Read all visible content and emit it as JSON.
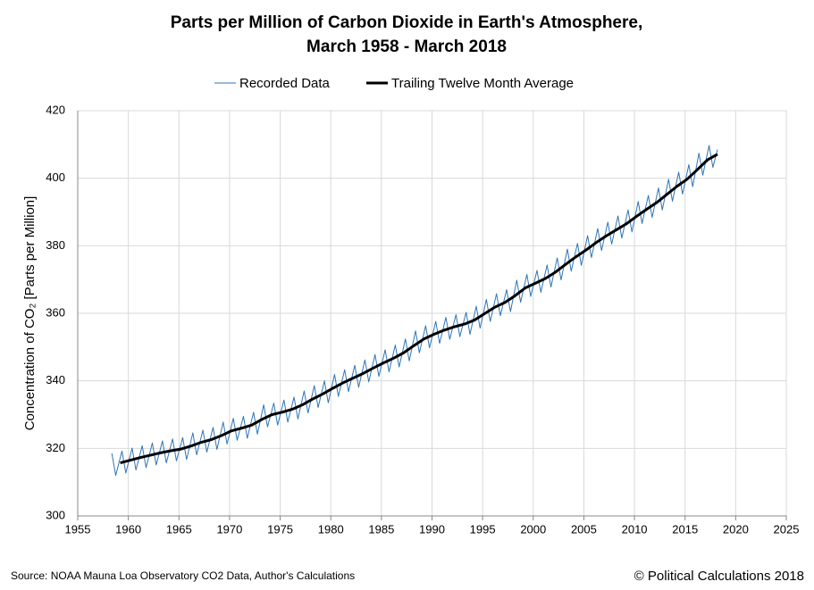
{
  "chart_data": {
    "type": "line",
    "title": [
      "Parts per Million of Carbon Dioxide in Earth's Atmosphere,",
      "March 1958 - March 2018"
    ],
    "y_label": "Concentration of CO₂ [Parts per Million]",
    "source": "Source: NOAA Mauna Loa Observatory CO2 Data, Author's Calculations",
    "credit": "© Political Calculations 2018",
    "xlim": [
      1955,
      2025
    ],
    "xticks": [
      1955,
      1960,
      1965,
      1970,
      1975,
      1980,
      1985,
      1990,
      1995,
      2000,
      2005,
      2010,
      2015,
      2020,
      2025
    ],
    "ylim": [
      300,
      420
    ],
    "yticks": [
      300,
      320,
      340,
      360,
      380,
      400,
      420
    ],
    "grid": true,
    "legend": "top",
    "series": [
      {
        "name": "Recorded Data",
        "color": "#2e75b6",
        "x": [
          1958.37,
          1958.75,
          1959.37,
          1959.75,
          1960.37,
          1960.75,
          1961.37,
          1961.75,
          1962.37,
          1962.75,
          1963.37,
          1963.75,
          1964.37,
          1964.75,
          1965.37,
          1965.75,
          1966.37,
          1966.75,
          1967.37,
          1967.75,
          1968.37,
          1968.75,
          1969.37,
          1969.75,
          1970.37,
          1970.75,
          1971.37,
          1971.75,
          1972.37,
          1972.75,
          1973.37,
          1973.75,
          1974.37,
          1974.75,
          1975.37,
          1975.75,
          1976.37,
          1976.75,
          1977.37,
          1977.75,
          1978.37,
          1978.75,
          1979.37,
          1979.75,
          1980.37,
          1980.75,
          1981.37,
          1981.75,
          1982.37,
          1982.75,
          1983.37,
          1983.75,
          1984.37,
          1984.75,
          1985.37,
          1985.75,
          1986.37,
          1986.75,
          1987.37,
          1987.75,
          1988.37,
          1988.75,
          1989.37,
          1989.75,
          1990.37,
          1990.75,
          1991.37,
          1991.75,
          1992.37,
          1992.75,
          1993.37,
          1993.75,
          1994.37,
          1994.75,
          1995.37,
          1995.75,
          1996.37,
          1996.75,
          1997.37,
          1997.75,
          1998.37,
          1998.75,
          1999.37,
          1999.75,
          2000.37,
          2000.75,
          2001.37,
          2001.75,
          2002.37,
          2002.75,
          2003.37,
          2003.75,
          2004.37,
          2004.75,
          2005.37,
          2005.75,
          2006.37,
          2006.75,
          2007.37,
          2007.75,
          2008.37,
          2008.75,
          2009.37,
          2009.75,
          2010.37,
          2010.75,
          2011.37,
          2011.75,
          2012.37,
          2012.75,
          2013.37,
          2013.75,
          2014.37,
          2014.75,
          2015.37,
          2015.75,
          2016.37,
          2016.75,
          2017.37,
          2017.75,
          2018.2
        ],
        "values": [
          318.5,
          312.0,
          319.2,
          312.7,
          320.1,
          313.6,
          320.8,
          314.3,
          321.6,
          315.1,
          322.2,
          315.7,
          322.8,
          316.3,
          323.2,
          316.7,
          324.6,
          318.1,
          325.4,
          318.9,
          326.2,
          319.7,
          327.8,
          321.3,
          328.9,
          322.4,
          329.5,
          323.0,
          330.7,
          324.2,
          332.9,
          326.4,
          333.4,
          326.9,
          334.3,
          327.8,
          335.2,
          328.7,
          337.0,
          330.5,
          338.6,
          332.1,
          340.0,
          333.5,
          341.9,
          335.4,
          343.3,
          336.8,
          344.6,
          338.1,
          346.2,
          339.7,
          347.8,
          341.3,
          349.2,
          342.7,
          350.6,
          344.1,
          352.4,
          345.9,
          354.8,
          348.3,
          356.3,
          349.8,
          357.6,
          351.1,
          358.8,
          352.3,
          359.6,
          353.1,
          360.3,
          353.8,
          362.1,
          355.6,
          364.1,
          357.6,
          365.8,
          359.3,
          367.0,
          360.5,
          369.8,
          363.3,
          371.5,
          365.0,
          372.7,
          366.2,
          374.3,
          367.8,
          376.4,
          369.9,
          379.0,
          372.5,
          380.7,
          374.2,
          383.0,
          376.5,
          385.1,
          378.6,
          387.0,
          380.5,
          388.8,
          382.3,
          390.6,
          384.1,
          393.1,
          386.6,
          394.9,
          388.4,
          397.1,
          390.6,
          399.7,
          393.2,
          401.8,
          395.3,
          404.0,
          397.5,
          407.4,
          400.9,
          409.7,
          403.2,
          408.5
        ]
      },
      {
        "name": "Trailing Twelve Month Average",
        "color": "#000000",
        "x": [
          1959.2,
          1960.2,
          1961.2,
          1962.2,
          1963.2,
          1964.2,
          1965.2,
          1966.2,
          1967.2,
          1968.2,
          1969.2,
          1970.2,
          1971.2,
          1972.2,
          1973.2,
          1974.2,
          1975.2,
          1976.2,
          1977.2,
          1978.2,
          1979.2,
          1980.2,
          1981.2,
          1982.2,
          1983.2,
          1984.2,
          1985.2,
          1986.2,
          1987.2,
          1988.2,
          1989.2,
          1990.2,
          1991.2,
          1992.2,
          1993.2,
          1994.2,
          1995.2,
          1996.2,
          1997.2,
          1998.2,
          1999.2,
          2000.2,
          2001.2,
          2002.2,
          2003.2,
          2004.2,
          2005.2,
          2006.2,
          2007.2,
          2008.2,
          2009.2,
          2010.2,
          2011.2,
          2012.2,
          2013.2,
          2014.2,
          2015.2,
          2016.2,
          2017.2,
          2018.2
        ],
        "values": [
          315.7,
          316.5,
          317.3,
          318.0,
          318.7,
          319.3,
          319.8,
          320.7,
          321.8,
          322.6,
          323.8,
          325.2,
          326.0,
          326.9,
          328.6,
          330.0,
          330.7,
          331.6,
          332.9,
          334.6,
          336.1,
          337.8,
          339.4,
          340.8,
          342.2,
          343.8,
          345.3,
          346.7,
          348.3,
          350.4,
          352.4,
          353.8,
          355.0,
          356.0,
          356.8,
          358.0,
          359.9,
          361.8,
          363.2,
          365.2,
          367.5,
          368.9,
          370.3,
          372.2,
          374.5,
          376.7,
          378.7,
          380.9,
          382.9,
          384.7,
          386.5,
          388.7,
          390.8,
          392.8,
          395.2,
          397.6,
          399.7,
          402.5,
          405.4,
          407.1
        ]
      }
    ]
  }
}
